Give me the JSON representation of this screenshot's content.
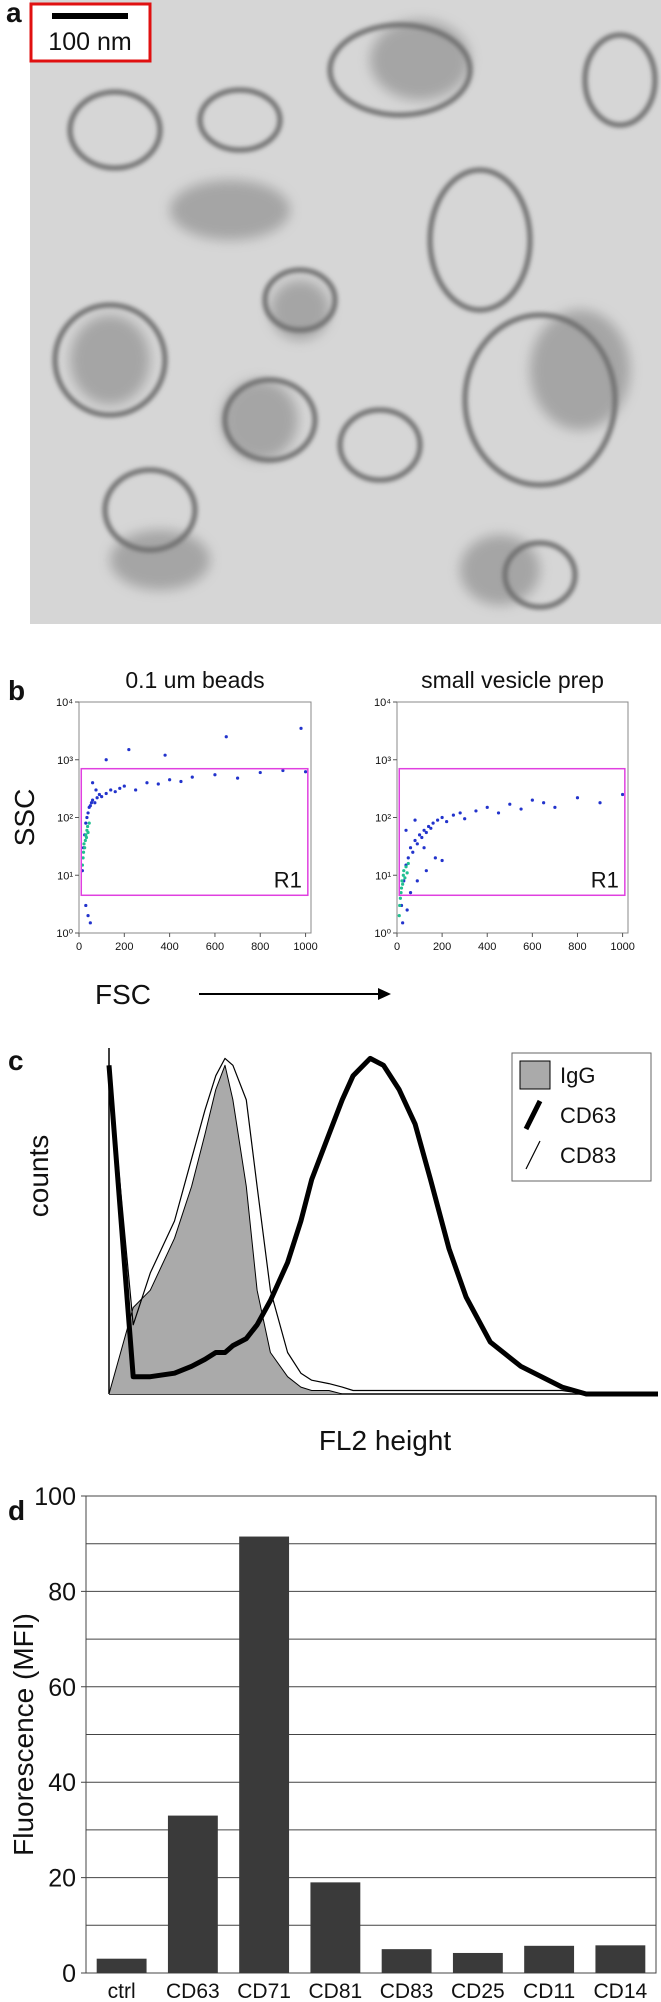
{
  "panel_labels": [
    "a",
    "b",
    "c",
    "d"
  ],
  "scale_bar": "100 nm",
  "chart_data": [
    {
      "type": "scatter",
      "title": "0.1 um beads",
      "xlabel": "FSC",
      "ylabel": "SSC",
      "xlim": [
        0,
        1024
      ],
      "xticks": [
        0,
        200,
        400,
        600,
        800,
        1000
      ],
      "ylim": [
        1,
        10000
      ],
      "log_y": true,
      "yticks": [
        {
          "value": 1,
          "label": "10⁰"
        },
        {
          "value": 10,
          "label": "10¹"
        },
        {
          "value": 100,
          "label": "10²"
        },
        {
          "value": 1000,
          "label": "10³"
        },
        {
          "value": 10000,
          "label": "10⁴"
        }
      ],
      "gate": {
        "label": "R1",
        "x0": 10,
        "x1": 1010,
        "y0": 4.5,
        "y1": 700,
        "color": "#e040e0"
      },
      "series": [
        {
          "color": "#2233cc",
          "x": [
            20,
            25,
            30,
            35,
            40,
            45,
            50,
            55,
            60,
            70,
            80,
            90,
            100,
            120,
            140,
            160,
            180,
            200,
            250,
            300,
            350,
            400,
            450,
            500,
            600,
            700,
            800,
            900,
            1000,
            30,
            40,
            50,
            120,
            220,
            380,
            650,
            980,
            15,
            60,
            75
          ],
          "y": [
            30,
            50,
            80,
            100,
            120,
            150,
            160,
            180,
            200,
            180,
            220,
            250,
            230,
            260,
            300,
            280,
            320,
            350,
            300,
            400,
            380,
            450,
            420,
            500,
            550,
            480,
            600,
            650,
            620,
            3,
            2,
            1.5,
            1000,
            1500,
            1200,
            2500,
            3500,
            12,
            400,
            300
          ]
        },
        {
          "color": "#20c090",
          "x": [
            15,
            18,
            20,
            22,
            25,
            28,
            30,
            33,
            35,
            38,
            40,
            45
          ],
          "y": [
            15,
            20,
            25,
            35,
            30,
            40,
            50,
            45,
            60,
            70,
            55,
            80
          ]
        }
      ]
    },
    {
      "type": "scatter",
      "title": "small vesicle prep",
      "xlim": [
        0,
        1024
      ],
      "xticks": [
        0,
        200,
        400,
        600,
        800,
        1000
      ],
      "ylim": [
        1,
        10000
      ],
      "log_y": true,
      "yticks": [
        {
          "value": 1,
          "label": "10⁰"
        },
        {
          "value": 10,
          "label": "10¹"
        },
        {
          "value": 100,
          "label": "10²"
        },
        {
          "value": 1000,
          "label": "10³"
        },
        {
          "value": 10000,
          "label": "10⁴"
        }
      ],
      "gate": {
        "label": "R1",
        "x0": 10,
        "x1": 1010,
        "y0": 4.5,
        "y1": 700,
        "color": "#e040e0"
      },
      "series": [
        {
          "color": "#2233cc",
          "x": [
            20,
            30,
            40,
            50,
            60,
            70,
            80,
            90,
            100,
            110,
            120,
            130,
            140,
            150,
            160,
            180,
            200,
            220,
            250,
            280,
            300,
            350,
            400,
            450,
            500,
            550,
            600,
            650,
            700,
            800,
            900,
            1000,
            60,
            90,
            130,
            170,
            40,
            80,
            120,
            200,
            25,
            45
          ],
          "y": [
            3,
            8,
            15,
            20,
            30,
            25,
            40,
            35,
            50,
            45,
            60,
            55,
            70,
            65,
            80,
            90,
            100,
            85,
            110,
            120,
            95,
            130,
            150,
            120,
            170,
            140,
            200,
            180,
            150,
            220,
            180,
            250,
            5,
            8,
            12,
            20,
            60,
            90,
            30,
            18,
            1.5,
            2.5
          ]
        },
        {
          "color": "#20c090",
          "x": [
            10,
            12,
            15,
            18,
            20,
            22,
            25,
            28,
            30,
            35,
            40,
            45,
            50
          ],
          "y": [
            2,
            3,
            4,
            5,
            6,
            8,
            7,
            10,
            12,
            9,
            14,
            11,
            16
          ]
        }
      ]
    },
    {
      "type": "line",
      "xlabel": "FL2 height",
      "ylabel": "counts",
      "xlim": [
        1,
        10000
      ],
      "log_x": true,
      "ylim": [
        0,
        100
      ],
      "x": [
        1,
        1.5,
        2,
        3,
        4,
        5,
        6,
        7,
        8,
        10,
        12,
        15,
        20,
        25,
        30,
        40,
        50,
        60,
        80,
        100,
        130,
        170,
        220,
        300,
        400,
        600,
        1000,
        2000,
        3000,
        5000,
        10000
      ],
      "legend": "upper right",
      "series": [
        {
          "name": "IgG",
          "color": "#aaaaaa",
          "fill": true,
          "line_width": 1,
          "values": [
            0,
            25,
            30,
            45,
            60,
            75,
            88,
            95,
            85,
            60,
            30,
            12,
            5,
            2,
            1,
            1,
            0,
            0,
            0,
            0,
            0,
            0,
            0,
            0,
            0,
            0,
            0,
            0,
            0,
            0,
            0
          ]
        },
        {
          "name": "CD63",
          "color": "#000000",
          "line_width": 5,
          "values": [
            95,
            5,
            5,
            6,
            8,
            10,
            12,
            12,
            14,
            16,
            20,
            27,
            38,
            50,
            62,
            75,
            85,
            92,
            97,
            95,
            88,
            78,
            62,
            42,
            28,
            15,
            8,
            2,
            0,
            0,
            0
          ]
        },
        {
          "name": "CD83",
          "color": "#000000",
          "line_width": 1.2,
          "values": [
            95,
            20,
            35,
            50,
            68,
            82,
            92,
            97,
            95,
            85,
            60,
            30,
            12,
            6,
            4,
            3,
            2,
            1,
            1,
            1,
            1,
            1,
            1,
            1,
            1,
            1,
            1,
            1,
            0,
            0,
            0
          ]
        }
      ]
    },
    {
      "type": "bar",
      "ylabel": "Fluorescence (MFI)",
      "categories": [
        "ctrl",
        "CD63",
        "CD71",
        "CD81",
        "CD83",
        "CD25",
        "CD11",
        "CD14"
      ],
      "values": [
        3,
        33,
        91.5,
        19,
        5,
        4.2,
        5.7,
        5.8
      ],
      "color": "#3a3a3a",
      "ylim": [
        0,
        100
      ],
      "yticks": [
        0,
        20,
        40,
        60,
        80,
        100
      ],
      "minor_yticks": [
        10,
        30,
        50,
        70,
        90
      ],
      "grid": true
    }
  ]
}
